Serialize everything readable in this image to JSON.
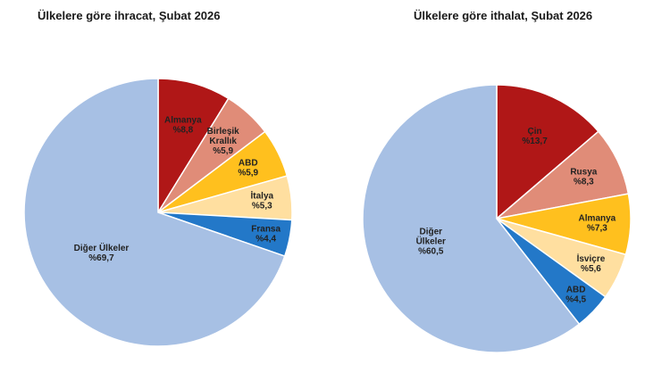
{
  "chart_data": [
    {
      "type": "pie",
      "title": "Ülkelere göre ihracat, Şubat 2026",
      "slices": [
        {
          "label": [
            "Almanya"
          ],
          "value_label": "%8,8",
          "value": 8.8,
          "color": "#B01717"
        },
        {
          "label": [
            "Birleşik",
            "Krallık"
          ],
          "value_label": "%5,9",
          "value": 5.9,
          "color": "#E08C78"
        },
        {
          "label": [
            "ABD"
          ],
          "value_label": "%5,9",
          "value": 5.9,
          "color": "#FFC01E"
        },
        {
          "label": [
            "İtalya"
          ],
          "value_label": "%5,3",
          "value": 5.3,
          "color": "#FFDFA0"
        },
        {
          "label": [
            "Fransa"
          ],
          "value_label": "%4,4",
          "value": 4.4,
          "color": "#2378C8"
        },
        {
          "label": [
            "Diğer Ülkeler"
          ],
          "value_label": "%69,7",
          "value": 69.7,
          "color": "#A7C0E4"
        }
      ]
    },
    {
      "type": "pie",
      "title": "Ülkelere göre ithalat, Şubat 2026",
      "slices": [
        {
          "label": [
            "Çin"
          ],
          "value_label": "%13,7",
          "value": 13.7,
          "color": "#B01717"
        },
        {
          "label": [
            "Rusya"
          ],
          "value_label": "%8,3",
          "value": 8.3,
          "color": "#E08C78"
        },
        {
          "label": [
            "Almanya"
          ],
          "value_label": "%7,3",
          "value": 7.3,
          "color": "#FFC01E"
        },
        {
          "label": [
            "İsviçre"
          ],
          "value_label": "%5,6",
          "value": 5.6,
          "color": "#FFDFA0"
        },
        {
          "label": [
            "ABD"
          ],
          "value_label": "%4,5",
          "value": 4.5,
          "color": "#2378C8"
        },
        {
          "label": [
            "Diğer",
            "Ülkeler"
          ],
          "value_label": "%60,5",
          "value": 60.5,
          "color": "#A7C0E4"
        }
      ]
    }
  ]
}
